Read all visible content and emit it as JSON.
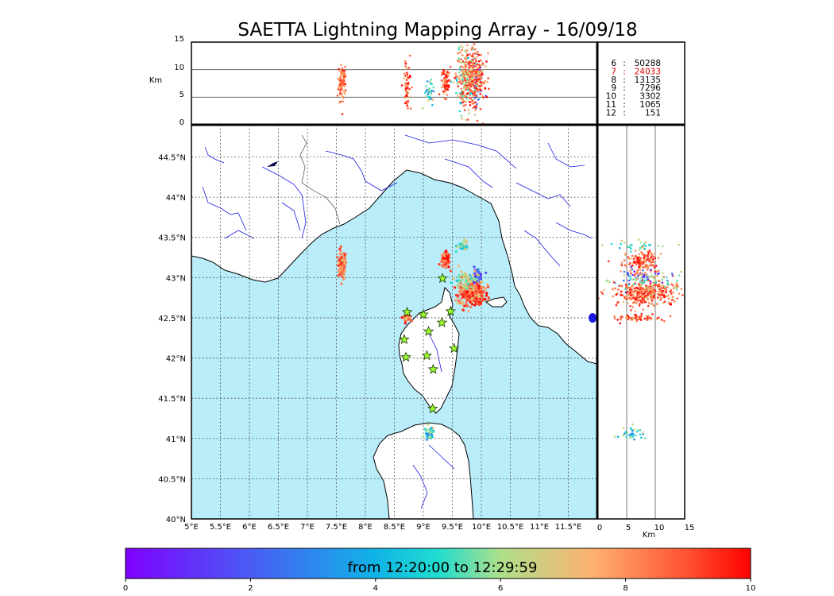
{
  "title": "SAETTA Lightning Mapping Array - 16/09/18",
  "altitude_panel": {
    "unit_label": "Km",
    "y_ticks": [
      "0",
      "5",
      "10",
      "15"
    ]
  },
  "side_panel": {
    "unit_label": "Km",
    "x_ticks": [
      "0",
      "5",
      "10",
      "15"
    ]
  },
  "map": {
    "lon_ticks": [
      "5°E",
      "5.5°E",
      "6°E",
      "6.5°E",
      "7°E",
      "7.5°E",
      "8°E",
      "8.5°E",
      "9°E",
      "9.5°E",
      "10°E",
      "10.5°E",
      "11°E",
      "11.5°E"
    ],
    "lat_ticks": [
      "40°N",
      "40.5°N",
      "41°N",
      "41.5°N",
      "42°N",
      "42.5°N",
      "43°N",
      "43.5°N",
      "44°N",
      "44.5°N"
    ],
    "sea_color": "#b9edfa",
    "land_color": "#ffffff",
    "river_color": "#1a1ae6",
    "stations": [
      {
        "lon": 8.72,
        "lat": 42.57
      },
      {
        "lon": 9.0,
        "lat": 42.54
      },
      {
        "lon": 9.33,
        "lat": 42.99
      },
      {
        "lon": 9.47,
        "lat": 42.58
      },
      {
        "lon": 9.32,
        "lat": 42.44
      },
      {
        "lon": 9.09,
        "lat": 42.33
      },
      {
        "lon": 8.67,
        "lat": 42.23
      },
      {
        "lon": 9.53,
        "lat": 42.12
      },
      {
        "lon": 9.06,
        "lat": 42.03
      },
      {
        "lon": 8.7,
        "lat": 42.01
      },
      {
        "lon": 9.17,
        "lat": 41.86
      },
      {
        "lon": 9.16,
        "lat": 41.37
      }
    ]
  },
  "counts": [
    {
      "label": "6",
      "value": "50288",
      "color": "#000000"
    },
    {
      "label": "7",
      "value": "24033",
      "color": "#e00000"
    },
    {
      "label": "8",
      "value": "13135",
      "color": "#000000"
    },
    {
      "label": "9",
      "value": "7296",
      "color": "#000000"
    },
    {
      "label": "10",
      "value": "3302",
      "color": "#000000"
    },
    {
      "label": "11",
      "value": "1065",
      "color": "#000000"
    },
    {
      "label": "12",
      "value": "151",
      "color": "#000000"
    }
  ],
  "colorbar": {
    "text": "from 12:20:00 to 12:29:59",
    "ticks": [
      "0",
      "2",
      "4",
      "6",
      "8",
      "10"
    ],
    "min": 0,
    "max": 10
  },
  "clusters": [
    {
      "lon": 7.6,
      "lat": 43.16,
      "slon": 0.035,
      "slat": 0.09,
      "alt": 7.5,
      "salt": 1.6,
      "t": 8.5,
      "n": 90
    },
    {
      "lon": 8.72,
      "lat": 42.5,
      "slon": 0.03,
      "slat": 0.02,
      "alt": 7.0,
      "salt": 2.0,
      "t": 9.0,
      "n": 60
    },
    {
      "lon": 9.38,
      "lat": 43.21,
      "slon": 0.04,
      "slat": 0.05,
      "alt": 7.8,
      "salt": 1.5,
      "t": 8.8,
      "n": 70
    },
    {
      "lon": 9.68,
      "lat": 43.4,
      "slon": 0.05,
      "slat": 0.03,
      "alt": 8.0,
      "salt": 2.5,
      "t": 5.8,
      "n": 30
    },
    {
      "lon": 9.92,
      "lat": 43.02,
      "slon": 0.05,
      "slat": 0.05,
      "alt": 7.0,
      "salt": 2.5,
      "t": 1.5,
      "n": 45
    },
    {
      "lon": 9.83,
      "lat": 42.8,
      "slon": 0.11,
      "slat": 0.07,
      "alt": 8.5,
      "salt": 2.6,
      "t": 8.7,
      "n": 320
    },
    {
      "lon": 9.75,
      "lat": 42.95,
      "slon": 0.12,
      "slat": 0.08,
      "alt": 9.0,
      "salt": 2.8,
      "t": 6.2,
      "n": 70
    },
    {
      "lon": 9.1,
      "lat": 41.07,
      "slon": 0.04,
      "slat": 0.04,
      "alt": 6.0,
      "salt": 1.0,
      "t": 4.8,
      "n": 35
    }
  ]
}
